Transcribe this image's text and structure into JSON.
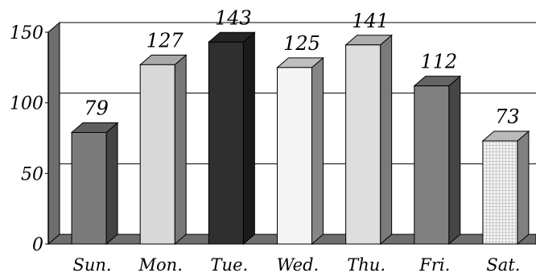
{
  "chart_data": {
    "type": "bar",
    "title": "",
    "xlabel": "",
    "ylabel": "",
    "categories": [
      "Sun.",
      "Mon.",
      "Tue.",
      "Wed.",
      "Thu.",
      "Fri.",
      "Sat."
    ],
    "values": [
      79,
      127,
      143,
      125,
      141,
      112,
      73
    ],
    "ylim": [
      0,
      150
    ],
    "yticks": [
      0,
      50,
      100,
      150
    ],
    "grid": true,
    "legend": "none",
    "style": "3d-column",
    "bar_colors": [
      "#7a7a7a",
      "#d9d9d9",
      "#2f2f2f",
      "#f4f4f4",
      "#dedede",
      "#808080",
      "#e8e8e8"
    ],
    "bar_patterns": [
      "solid",
      "solid",
      "solid",
      "solid",
      "solid",
      "solid",
      "crosshatch"
    ]
  }
}
